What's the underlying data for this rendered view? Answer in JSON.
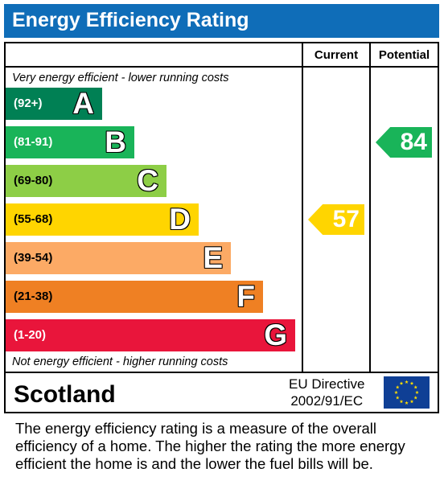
{
  "title": "Energy Efficiency Rating",
  "columns": {
    "current": "Current",
    "potential": "Potential"
  },
  "top_caption": "Very energy efficient - lower running costs",
  "bottom_caption": "Not energy efficient - higher running costs",
  "region": "Scotland",
  "directive": {
    "line1": "EU Directive",
    "line2": "2002/91/EC"
  },
  "footer_lines": [
    "The energy efficiency rating is a measure of the overall",
    "efficiency of a home.  The higher the rating the more energy",
    "efficient the home is and the lower the fuel bills will be."
  ],
  "colors": {
    "title_bar": "#0f6db8",
    "flag_blue": "#0f3f95",
    "flag_stars": "#ffdd00"
  },
  "chart_data": {
    "type": "bar",
    "title": "Energy Efficiency Rating",
    "categories": [
      "A",
      "B",
      "C",
      "D",
      "E",
      "F",
      "G"
    ],
    "ranges": [
      "(92+)",
      "(81-91)",
      "(69-80)",
      "(55-68)",
      "(39-54)",
      "(21-38)",
      "(1-20)"
    ],
    "band_colors": [
      "#008054",
      "#19b459",
      "#8dce46",
      "#ffd500",
      "#fcaa65",
      "#ef8023",
      "#e9153b"
    ],
    "range_text_colors": [
      "#ffffff",
      "#ffffff",
      "#000000",
      "#000000",
      "#000000",
      "#000000",
      "#ffffff"
    ],
    "series": [
      {
        "name": "Current",
        "value": 57,
        "band": "D",
        "color": "#ffd500"
      },
      {
        "name": "Potential",
        "value": 84,
        "band": "B",
        "color": "#19b459"
      }
    ]
  }
}
